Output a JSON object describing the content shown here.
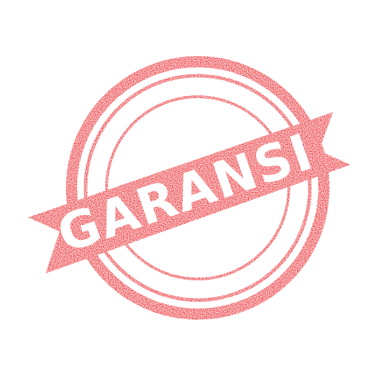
{
  "stamp": {
    "text": "GARANSI",
    "color": "#e8161c",
    "text_color": "#ffffff",
    "background": "#ffffff",
    "icon": "grunge-rubber-stamp"
  }
}
